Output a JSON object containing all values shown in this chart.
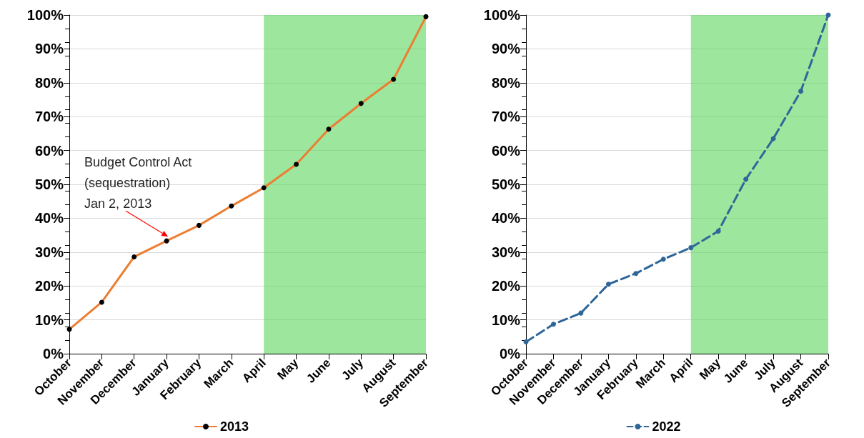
{
  "chart_data": [
    {
      "type": "line",
      "categories": [
        "October",
        "November",
        "December",
        "January",
        "February",
        "March",
        "April",
        "May",
        "June",
        "July",
        "August",
        "September"
      ],
      "series": [
        {
          "name": "2013",
          "color": "#ed7d31",
          "values": [
            7.2,
            15.2,
            28.6,
            33.3,
            37.9,
            43.6,
            49.0,
            55.9,
            66.3,
            73.9,
            81.0,
            99.5
          ]
        }
      ],
      "ylim": [
        0,
        100
      ],
      "yticks": [
        {
          "value": 0,
          "label": "0%"
        },
        {
          "value": 10,
          "label": "10%"
        },
        {
          "value": 20,
          "label": "20%"
        },
        {
          "value": 30,
          "label": "30%"
        },
        {
          "value": 40,
          "label": "40%"
        },
        {
          "value": 50,
          "label": "50%"
        },
        {
          "value": 60,
          "label": "60%"
        },
        {
          "value": 70,
          "label": "70%"
        },
        {
          "value": 80,
          "label": "80%"
        },
        {
          "value": 90,
          "label": "90%"
        },
        {
          "value": 100,
          "label": "100%"
        }
      ],
      "bands": [
        {
          "axis": "x",
          "from": "April",
          "to": "September",
          "color": "#5cd65c"
        }
      ],
      "annotations": [
        {
          "text": "Budget Control Act\n(sequestration)\nJan 2, 2013",
          "x": "January",
          "y": 33.3
        }
      ],
      "grid": "y",
      "legend": "bottom",
      "marker": "circle",
      "line_style": "solid"
    },
    {
      "type": "line",
      "categories": [
        "October",
        "November",
        "December",
        "January",
        "February",
        "March",
        "April",
        "May",
        "June",
        "July",
        "August",
        "September"
      ],
      "series": [
        {
          "name": "2022",
          "color": "#2e6699",
          "values": [
            3.5,
            8.7,
            12.0,
            20.5,
            23.7,
            27.9,
            31.3,
            36.2,
            51.5,
            63.5,
            77.5,
            100
          ]
        }
      ],
      "ylim": [
        0,
        100
      ],
      "yticks": [
        {
          "value": 0,
          "label": "0%"
        },
        {
          "value": 10,
          "label": "10%"
        },
        {
          "value": 20,
          "label": "20%"
        },
        {
          "value": 30,
          "label": "30%"
        },
        {
          "value": 40,
          "label": "40%"
        },
        {
          "value": 50,
          "label": "50%"
        },
        {
          "value": 60,
          "label": "60%"
        },
        {
          "value": 70,
          "label": "70%"
        },
        {
          "value": 80,
          "label": "80%"
        },
        {
          "value": 90,
          "label": "90%"
        },
        {
          "value": 100,
          "label": "100%"
        }
      ],
      "bands": [
        {
          "axis": "x",
          "from": "April",
          "to": "September",
          "color": "#5cd65c"
        }
      ],
      "grid": "y",
      "legend": "bottom",
      "marker": "circle",
      "line_style": "dashed"
    }
  ]
}
